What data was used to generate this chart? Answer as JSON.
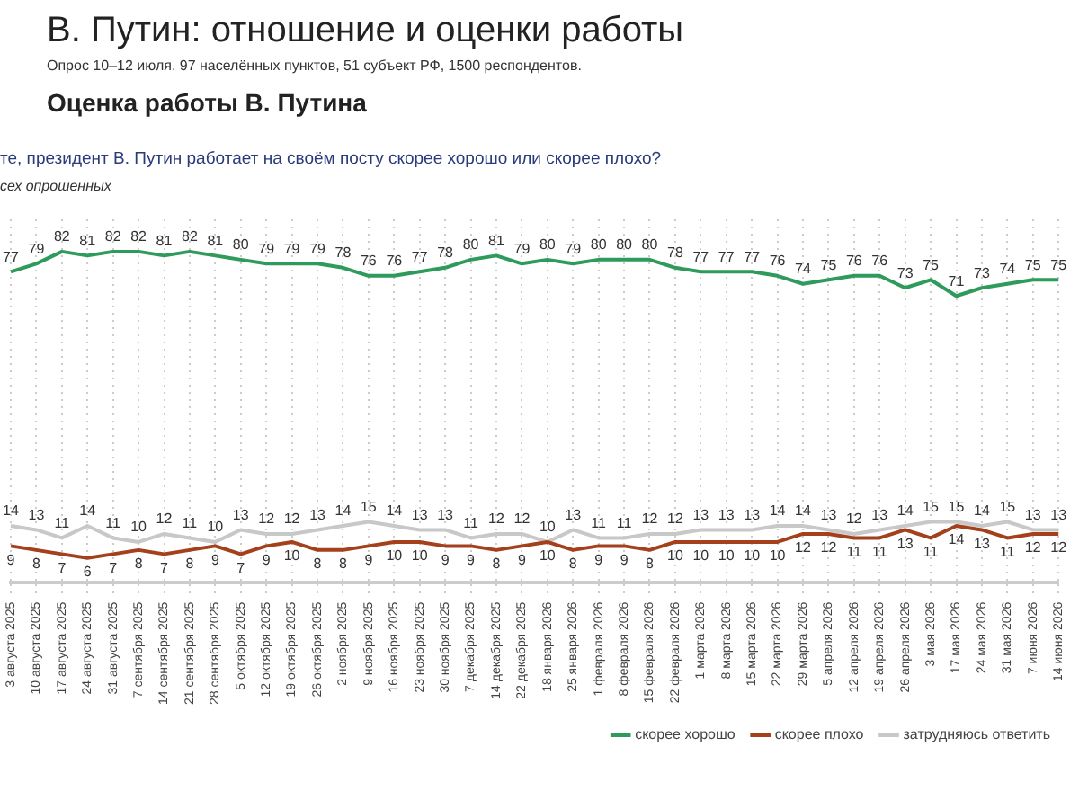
{
  "chart_data": {
    "type": "line",
    "title": "В. Путин: отношение и оценки работы",
    "subtitle": "Опрос 10–12 июля. 97 населённых пунктов, 51 субъект РФ, 1500 респондентов.",
    "annotations": [
      "Оценка работы В. Путина",
      "те, президент В. Путин работает на своём посту скорее хорошо или скорее плохо?",
      "сех опрошенных"
    ],
    "categories": [
      "3 августа 2025",
      "10 августа 2025",
      "17 августа 2025",
      "24 августа 2025",
      "31 августа 2025",
      "7 сентября 2025",
      "14 сентября 2025",
      "21 сентября 2025",
      "28 сентября 2025",
      "5 октября 2025",
      "12 октября 2025",
      "19 октября 2025",
      "26 октября 2025",
      "2 ноября 2025",
      "9 ноября 2025",
      "16 ноября 2025",
      "23 ноября 2025",
      "30 ноября 2025",
      "7 декабря 2025",
      "14 декабря 2025",
      "22 декабря 2025",
      "18 января 2026",
      "25 января 2026",
      "1 февраля 2026",
      "8 февраля 2026",
      "15 февраля 2026",
      "22 февраля 2026",
      "1 марта 2026",
      "8 марта 2026",
      "15 марта 2026",
      "22 марта 2026",
      "29 марта 2026",
      "5 апреля 2026",
      "12 апреля 2026",
      "19 апреля 2026",
      "26 апреля 2026",
      "3 мая 2026",
      "17 мая 2026",
      "24 мая 2026",
      "31 мая 2026",
      "7 июня 2026",
      "14 июня 2026"
    ],
    "series": [
      {
        "name": "скорее хорошо",
        "color": "#2e9a5c",
        "values": [
          77,
          79,
          82,
          81,
          82,
          82,
          81,
          82,
          81,
          80,
          79,
          79,
          79,
          78,
          76,
          76,
          77,
          78,
          80,
          81,
          79,
          80,
          79,
          80,
          80,
          80,
          78,
          77,
          77,
          77,
          76,
          74,
          75,
          76,
          76,
          73,
          75,
          71,
          73,
          74,
          75,
          75
        ]
      },
      {
        "name": "скорее плохо",
        "color": "#a4401c",
        "values": [
          9,
          8,
          7,
          6,
          7,
          8,
          7,
          8,
          9,
          7,
          9,
          10,
          8,
          8,
          9,
          10,
          10,
          9,
          9,
          8,
          9,
          10,
          8,
          9,
          9,
          8,
          10,
          10,
          10,
          10,
          10,
          12,
          12,
          11,
          11,
          13,
          11,
          14,
          13,
          11,
          12,
          12
        ]
      },
      {
        "name": "затрудняюсь ответить",
        "color": "#c8c8c8",
        "values": [
          14,
          13,
          11,
          14,
          11,
          10,
          12,
          11,
          10,
          13,
          12,
          12,
          13,
          14,
          15,
          14,
          13,
          13,
          11,
          12,
          12,
          10,
          13,
          11,
          11,
          12,
          12,
          13,
          13,
          13,
          14,
          14,
          13,
          12,
          13,
          14,
          15,
          15,
          14,
          15,
          13,
          13
        ]
      }
    ],
    "data_labels": true,
    "grid": "x",
    "legend": "bottom"
  }
}
